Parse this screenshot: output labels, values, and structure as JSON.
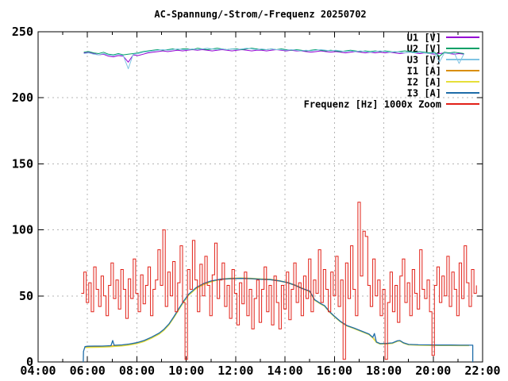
{
  "chart_data": {
    "type": "line",
    "title": "AC-Spannung/-Strom/-Frequenz 20250702",
    "xlabel": "",
    "ylabel": "",
    "xlim": [
      4,
      22
    ],
    "ylim": [
      0,
      250
    ],
    "grid": "dashed",
    "grid_color": "#b4b4b4",
    "border_color": "#000000",
    "legend_position": "top-right-inside",
    "x_major_ticks": [
      4,
      6,
      8,
      10,
      12,
      14,
      16,
      18,
      20,
      22
    ],
    "x_major_labels": [
      "04:00",
      "06:00",
      "08:00",
      "10:00",
      "12:00",
      "14:00",
      "16:00",
      "18:00",
      "20:00",
      "22:00"
    ],
    "x_minor_ticks": [
      5,
      7,
      9,
      11,
      13,
      15,
      17,
      19,
      21
    ],
    "y_ticks": [
      0,
      50,
      100,
      150,
      200,
      250
    ],
    "y_tick_labels": [
      "0",
      "50",
      "100",
      "150",
      "200",
      "250"
    ],
    "series": [
      {
        "id": "u1",
        "name": "U1 [V]",
        "color": "#9400d3",
        "width": 1,
        "t0": 5.85,
        "dt": 0.2,
        "values": [
          234,
          234.5,
          233.5,
          232.5,
          233,
          231.5,
          231,
          232,
          231.5,
          227,
          232.5,
          232,
          233,
          234,
          234.5,
          235,
          235.5,
          235,
          235.5,
          236,
          235.5,
          236,
          236.5,
          236,
          236.5,
          236,
          235.5,
          236,
          236.5,
          236,
          235.5,
          236,
          236.5,
          236,
          235.5,
          236,
          236,
          235.5,
          236,
          236.5,
          236,
          235.5,
          236,
          235.5,
          235.5,
          235,
          234.5,
          235,
          235.5,
          235,
          234.5,
          235,
          234.5,
          234,
          234.5,
          235,
          234.5,
          234,
          234.5,
          234,
          234.5,
          234,
          234.5,
          234,
          233.5,
          234,
          234.5,
          234,
          233.5,
          234,
          233.5,
          233,
          233.5,
          234,
          233.5,
          233,
          233.5,
          233
        ]
      },
      {
        "id": "u2",
        "name": "U2 [V]",
        "color": "#00a066",
        "width": 1,
        "t0": 5.85,
        "dt": 0.2,
        "values": [
          234.5,
          235,
          234,
          233.5,
          234.5,
          233,
          232.5,
          233.5,
          232.5,
          233,
          233.5,
          234,
          235,
          235.5,
          236,
          236.5,
          236,
          236.5,
          237,
          236.5,
          237,
          237,
          236.5,
          237.5,
          237,
          236.5,
          237,
          237.5,
          237,
          236.5,
          237,
          237,
          236.5,
          237,
          237.5,
          237,
          236.5,
          236.5,
          237,
          236.5,
          237,
          236.5,
          236,
          236.5,
          236,
          235.5,
          236,
          236.5,
          236,
          235.5,
          236,
          235.5,
          235,
          235.5,
          236,
          235.5,
          235,
          235.5,
          235,
          235.5,
          235,
          235.5,
          235,
          234.5,
          235,
          235.5,
          235,
          234.5,
          235,
          234.5,
          234,
          234.5,
          231.5,
          234.5,
          234,
          234.5,
          234,
          233.5
        ]
      },
      {
        "id": "u3",
        "name": "U3 [V]",
        "color": "#7fc4e4",
        "width": 1,
        "t0": 5.85,
        "dt": 0.2,
        "values": [
          233.5,
          234,
          233,
          232.5,
          233.5,
          232.5,
          232,
          233,
          232,
          222,
          233,
          233.5,
          234.5,
          235,
          235.5,
          236,
          236.5,
          236,
          236.5,
          237,
          236.5,
          236.5,
          237,
          236.5,
          237,
          237.5,
          237,
          236.5,
          237,
          236.5,
          237,
          236.5,
          237,
          237.5,
          237,
          236.5,
          237,
          236.5,
          237,
          236.5,
          236.5,
          236,
          236.5,
          236,
          235.5,
          236,
          235.5,
          236,
          236.5,
          236,
          235.5,
          236,
          235.5,
          235,
          235.5,
          235,
          235.5,
          235,
          234.5,
          235,
          235.5,
          235,
          234.5,
          235,
          234.5,
          234,
          234.5,
          234,
          234.5,
          234,
          233.5,
          234,
          227,
          234,
          233.5,
          234,
          226,
          233.5
        ]
      },
      {
        "id": "i1",
        "name": "I1 [A]",
        "color": "#d98e00",
        "width": 1.3,
        "points": [
          [
            5.88,
            11.2
          ],
          [
            6.1,
            11.5
          ],
          [
            6.5,
            11.6
          ],
          [
            6.9,
            11.9
          ],
          [
            7.1,
            12.2
          ],
          [
            7.4,
            12.6
          ],
          [
            7.7,
            13.3
          ],
          [
            8.0,
            14.3
          ],
          [
            8.3,
            16.0
          ],
          [
            8.6,
            18.5
          ],
          [
            8.9,
            21.5
          ],
          [
            9.1,
            24.5
          ],
          [
            9.3,
            28.5
          ],
          [
            9.5,
            34
          ],
          [
            9.7,
            40
          ],
          [
            9.9,
            46
          ],
          [
            10.1,
            51
          ],
          [
            10.4,
            56
          ],
          [
            10.7,
            59
          ],
          [
            11.0,
            61
          ],
          [
            11.4,
            62.5
          ],
          [
            11.8,
            63
          ],
          [
            12.2,
            63.2
          ],
          [
            12.6,
            63
          ],
          [
            13.0,
            62.5
          ],
          [
            13.4,
            62.3
          ],
          [
            13.8,
            61.2
          ],
          [
            14.1,
            60
          ],
          [
            14.4,
            58
          ],
          [
            14.7,
            55.5
          ],
          [
            15.0,
            53.5
          ],
          [
            15.2,
            47
          ],
          [
            15.45,
            44
          ],
          [
            15.6,
            42.5
          ],
          [
            15.8,
            38
          ],
          [
            16.0,
            34.5
          ],
          [
            16.25,
            30.5
          ],
          [
            16.5,
            27.5
          ],
          [
            16.8,
            25.5
          ],
          [
            17.0,
            24
          ],
          [
            17.2,
            22.5
          ],
          [
            17.4,
            21
          ],
          [
            17.55,
            18.5
          ],
          [
            17.7,
            15
          ],
          [
            17.85,
            13.8
          ],
          [
            18.1,
            13.9
          ],
          [
            18.35,
            14.3
          ],
          [
            18.55,
            15.9
          ],
          [
            18.65,
            16.1
          ],
          [
            18.8,
            14.4
          ],
          [
            19.0,
            13.2
          ],
          [
            19.4,
            12.9
          ],
          [
            19.8,
            12.8
          ],
          [
            20.2,
            12.7
          ],
          [
            20.7,
            12.7
          ],
          [
            21.1,
            12.6
          ],
          [
            21.45,
            12.6
          ]
        ]
      },
      {
        "id": "i2",
        "name": "I2 [A]",
        "color": "#e6df3a",
        "width": 1.3,
        "points": [
          [
            5.88,
            10.8
          ],
          [
            6.1,
            11.0
          ],
          [
            6.5,
            11.1
          ],
          [
            6.9,
            11.4
          ],
          [
            7.1,
            11.7
          ],
          [
            7.4,
            12.1
          ],
          [
            7.7,
            12.8
          ],
          [
            8.0,
            13.8
          ],
          [
            8.3,
            15.5
          ],
          [
            8.6,
            18.0
          ],
          [
            8.9,
            21.0
          ],
          [
            9.1,
            24.0
          ],
          [
            9.3,
            28.0
          ],
          [
            9.5,
            33.5
          ],
          [
            9.7,
            39.5
          ],
          [
            9.9,
            45.5
          ],
          [
            10.1,
            50.5
          ],
          [
            10.4,
            55.5
          ],
          [
            10.7,
            58.5
          ],
          [
            11.0,
            60.5
          ],
          [
            11.4,
            62.8
          ],
          [
            11.8,
            63.4
          ],
          [
            12.2,
            63.6
          ],
          [
            12.6,
            63.4
          ],
          [
            13.0,
            62.9
          ],
          [
            13.4,
            62.6
          ],
          [
            13.8,
            61.5
          ],
          [
            14.1,
            60.3
          ],
          [
            14.4,
            58.3
          ],
          [
            14.7,
            55.8
          ],
          [
            15.0,
            53.2
          ],
          [
            15.2,
            46.7
          ],
          [
            15.45,
            43.7
          ],
          [
            15.6,
            42.2
          ],
          [
            15.8,
            37.7
          ],
          [
            16.0,
            34.2
          ],
          [
            16.25,
            30.2
          ],
          [
            16.5,
            27.2
          ],
          [
            16.8,
            25.2
          ],
          [
            17.0,
            23.7
          ],
          [
            17.2,
            22.2
          ],
          [
            17.4,
            20.7
          ],
          [
            17.55,
            18.2
          ],
          [
            17.7,
            14.7
          ],
          [
            17.85,
            13.5
          ],
          [
            18.1,
            13.6
          ],
          [
            18.35,
            14.0
          ],
          [
            18.55,
            15.6
          ],
          [
            18.65,
            15.8
          ],
          [
            18.8,
            14.1
          ],
          [
            19.0,
            12.9
          ],
          [
            19.4,
            12.6
          ],
          [
            19.8,
            12.5
          ],
          [
            20.2,
            12.4
          ],
          [
            20.7,
            12.4
          ],
          [
            21.1,
            12.3
          ],
          [
            21.45,
            12.3
          ]
        ]
      },
      {
        "id": "i3",
        "name": "I3 [A]",
        "color": "#1e6ca8",
        "width": 1.3,
        "points": [
          [
            5.83,
            0
          ],
          [
            5.84,
            8
          ],
          [
            5.9,
            11.6
          ],
          [
            6.0,
            11.9
          ],
          [
            6.3,
            12.0
          ],
          [
            6.6,
            12.0
          ],
          [
            6.95,
            12.3
          ],
          [
            7.02,
            16.2
          ],
          [
            7.08,
            12.6
          ],
          [
            7.4,
            12.9
          ],
          [
            7.7,
            13.6
          ],
          [
            8.0,
            14.6
          ],
          [
            8.3,
            16.3
          ],
          [
            8.6,
            18.8
          ],
          [
            8.9,
            21.8
          ],
          [
            9.1,
            24.8
          ],
          [
            9.3,
            28.8
          ],
          [
            9.5,
            34.3
          ],
          [
            9.7,
            40.3
          ],
          [
            9.9,
            46.3
          ],
          [
            10.1,
            51.3
          ],
          [
            10.4,
            56.3
          ],
          [
            10.7,
            59.3
          ],
          [
            11.0,
            61.3
          ],
          [
            11.4,
            62.7
          ],
          [
            11.8,
            63.1
          ],
          [
            12.2,
            63.3
          ],
          [
            12.6,
            63.1
          ],
          [
            13.0,
            62.6
          ],
          [
            13.4,
            62.4
          ],
          [
            13.8,
            61.3
          ],
          [
            14.1,
            60.1
          ],
          [
            14.4,
            58.1
          ],
          [
            14.7,
            55.6
          ],
          [
            15.0,
            53.6
          ],
          [
            15.2,
            47.1
          ],
          [
            15.45,
            44.1
          ],
          [
            15.6,
            42.6
          ],
          [
            15.8,
            38.1
          ],
          [
            16.0,
            34.6
          ],
          [
            16.25,
            30.6
          ],
          [
            16.5,
            27.6
          ],
          [
            16.8,
            25.6
          ],
          [
            17.0,
            24.1
          ],
          [
            17.2,
            22.6
          ],
          [
            17.4,
            21.1
          ],
          [
            17.55,
            18.6
          ],
          [
            17.62,
            21.5
          ],
          [
            17.7,
            15.1
          ],
          [
            17.85,
            13.9
          ],
          [
            18.1,
            14.0
          ],
          [
            18.35,
            14.4
          ],
          [
            18.55,
            16.0
          ],
          [
            18.65,
            16.2
          ],
          [
            18.8,
            14.5
          ],
          [
            19.0,
            13.3
          ],
          [
            19.4,
            13.0
          ],
          [
            19.8,
            12.9
          ],
          [
            20.2,
            12.8
          ],
          [
            20.7,
            12.8
          ],
          [
            21.1,
            12.7
          ],
          [
            21.6,
            12.7
          ],
          [
            21.6,
            0
          ]
        ]
      },
      {
        "id": "freq",
        "name": "Frequenz [Hz] 1000x Zoom",
        "color": "#e22017",
        "width": 1,
        "style": "steps",
        "t0": 5.75,
        "dt": 0.1,
        "values": [
          52,
          68,
          45,
          60,
          38,
          72,
          55,
          42,
          65,
          50,
          35,
          58,
          75,
          48,
          62,
          40,
          70,
          55,
          33,
          63,
          48,
          78,
          52,
          38,
          66,
          44,
          58,
          72,
          35,
          55,
          62,
          85,
          58,
          100,
          42,
          68,
          50,
          76,
          38,
          60,
          88,
          45,
          2,
          70,
          55,
          92,
          62,
          38,
          74,
          50,
          80,
          58,
          35,
          66,
          90,
          48,
          62,
          75,
          42,
          58,
          33,
          70,
          52,
          28,
          60,
          44,
          68,
          35,
          55,
          25,
          48,
          62,
          30,
          55,
          72,
          38,
          58,
          28,
          65,
          45,
          25,
          58,
          40,
          68,
          32,
          55,
          75,
          45,
          60,
          35,
          65,
          48,
          78,
          38,
          62,
          52,
          85,
          45,
          70,
          55,
          38,
          68,
          50,
          80,
          42,
          62,
          2,
          75,
          48,
          88,
          55,
          35,
          121,
          65,
          99,
          95,
          58,
          42,
          78,
          50,
          62,
          35,
          55,
          2,
          45,
          68,
          38,
          58,
          30,
          65,
          78,
          45,
          60,
          35,
          70,
          52,
          40,
          85,
          55,
          48,
          62,
          38,
          5,
          58,
          72,
          45,
          65,
          50,
          80,
          42,
          68,
          55,
          35,
          75,
          48,
          88,
          60,
          42,
          70,
          52,
          58
        ]
      }
    ]
  }
}
